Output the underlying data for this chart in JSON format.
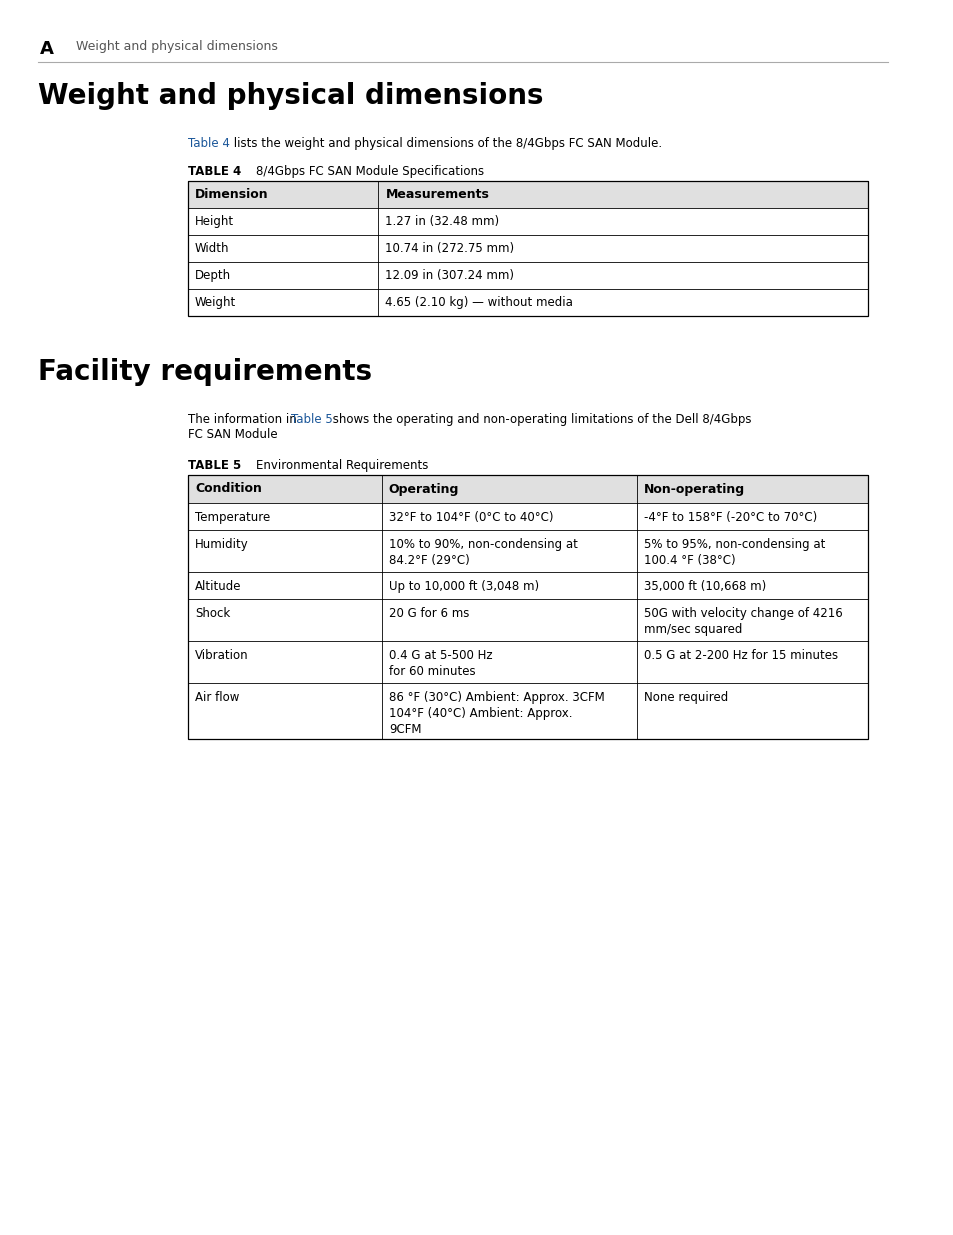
{
  "page_bg": "#ffffff",
  "header_letter": "A",
  "header_text": "Weight and physical dimensions",
  "section1_title": "Weight and physical dimensions",
  "section1_intro_before": "Table 4",
  "section1_intro_after": " lists the weight and physical dimensions of the 8/4Gbps FC SAN Module.",
  "table4_label": "TABLE 4",
  "table4_title": "8/4Gbps FC SAN Module Specifications",
  "table4_headers": [
    "Dimension",
    "Measurements"
  ],
  "table4_rows": [
    [
      "Height",
      "1.27 in (32.48 mm)"
    ],
    [
      "Width",
      "10.74 in (272.75 mm)"
    ],
    [
      "Depth",
      "12.09 in (307.24 mm)"
    ],
    [
      "Weight",
      "4.65 (2.10 kg) — without media"
    ]
  ],
  "section2_title": "Facility requirements",
  "section2_intro_before": "The information in ",
  "section2_table_link": "Table 5",
  "section2_intro_after": " shows the operating and non-operating limitations of the Dell 8/4Gbps\nFC SAN Module",
  "table5_label": "TABLE 5",
  "table5_title": "Environmental Requirements",
  "table5_headers": [
    "Condition",
    "Operating",
    "Non-operating"
  ],
  "table5_rows": [
    [
      "Temperature",
      "32°F to 104°F (0°C to 40°C)",
      "-4°F to 158°F (-20°C to 70°C)"
    ],
    [
      "Humidity",
      "10% to 90%, non-condensing at\n84.2°F (29°C)",
      "5% to 95%, non-condensing at\n100.4 °F (38°C)"
    ],
    [
      "Altitude",
      "Up to 10,000 ft (3,048 m)",
      "35,000 ft (10,668 m)"
    ],
    [
      "Shock",
      "20 G for 6 ms",
      "50G with velocity change of 4216\nmm/sec squared"
    ],
    [
      "Vibration",
      "0.4 G at 5-500 Hz\nfor 60 minutes",
      "0.5 G at 2-200 Hz for 15 minutes"
    ],
    [
      "Air flow",
      "86 °F (30°C) Ambient: Approx. 3CFM\n104°F (40°C) Ambient: Approx.\n9CFM",
      "None required"
    ]
  ],
  "link_color": "#1a5699",
  "body_font_size": 8.5,
  "header_font_size": 9.0,
  "section_title_font_size": 20,
  "table_label_font_size": 8.5,
  "page_header_font_size": 9,
  "page_header_letter_fontsize": 13
}
